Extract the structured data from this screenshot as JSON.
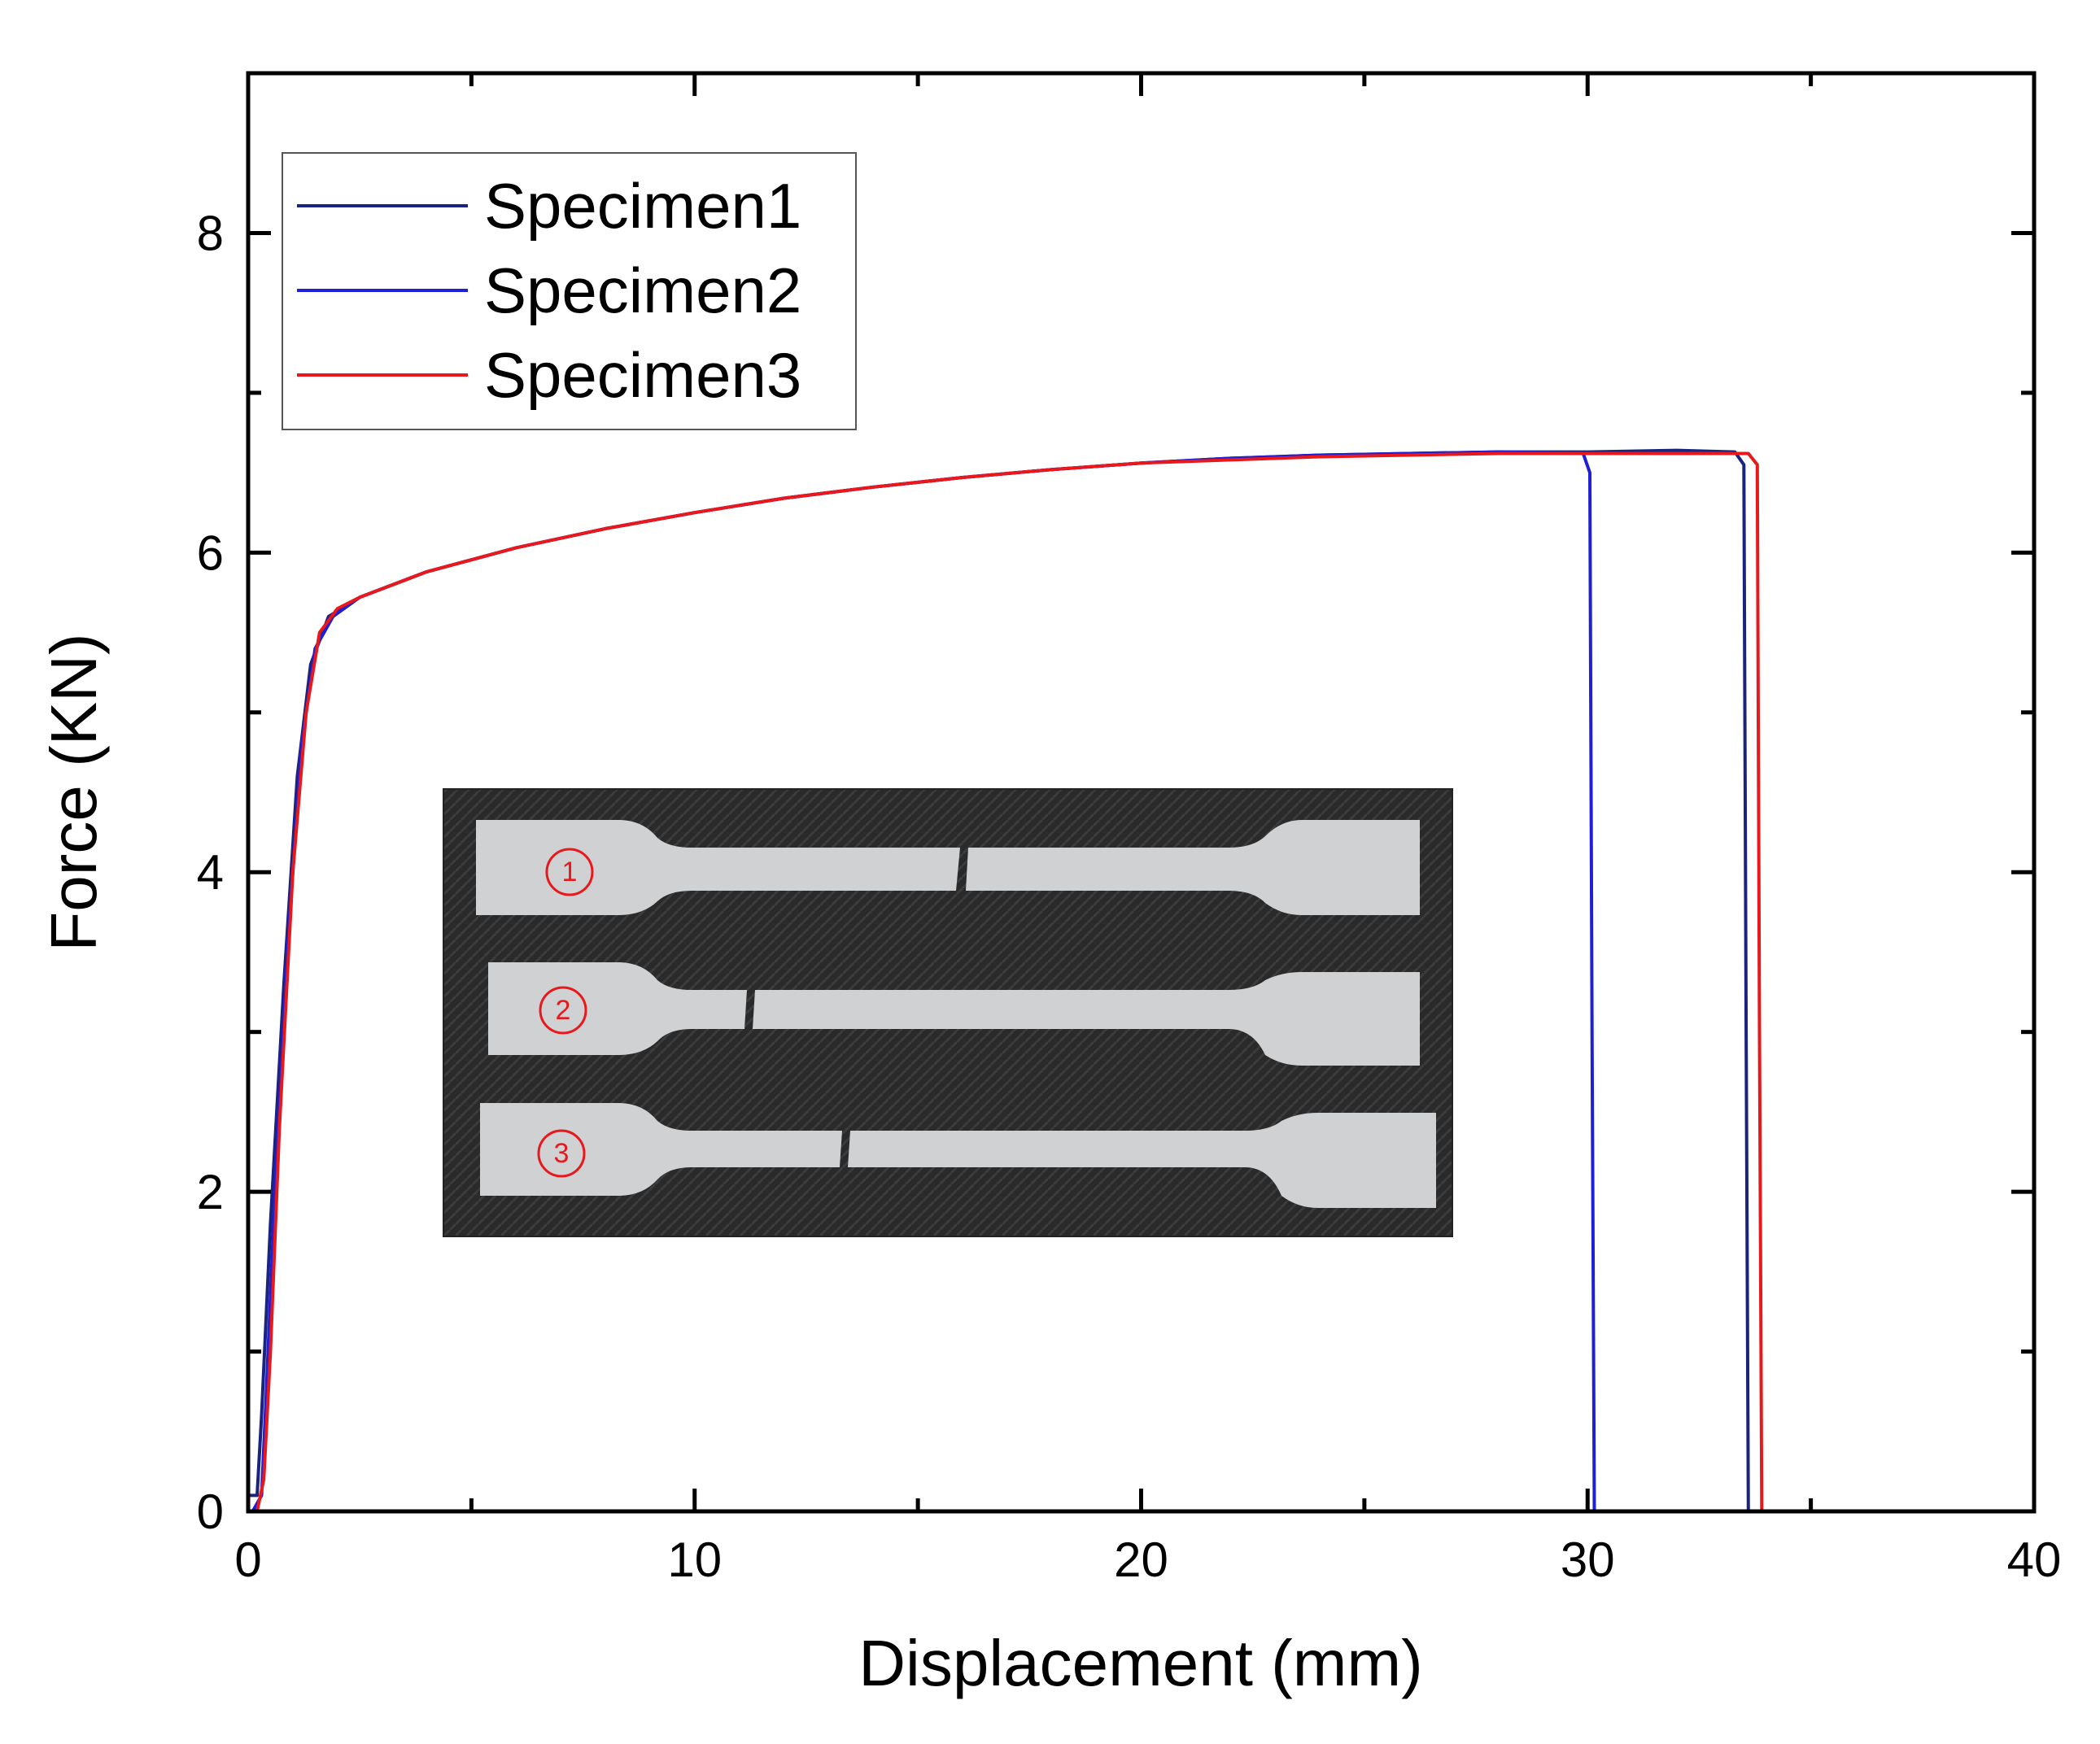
{
  "chart_data": {
    "type": "line",
    "xlabel": "Displacement (mm)",
    "ylabel": "Force (KN)",
    "xlim": [
      0,
      40
    ],
    "ylim": [
      0,
      9
    ],
    "xticks": [
      0,
      10,
      20,
      30,
      40
    ],
    "yticks": [
      0,
      2,
      4,
      6,
      8
    ],
    "x_tick_labels": [
      "0",
      "10",
      "20",
      "30",
      "40"
    ],
    "y_tick_labels": [
      "0",
      "2",
      "4",
      "6",
      "8"
    ],
    "grid": false,
    "legend_position": "top-left",
    "legend": [
      "Specimen1",
      "Specimen2",
      "Specimen3"
    ],
    "series": [
      {
        "name": "Specimen1",
        "color": "#1a237e",
        "points": [
          [
            0.0,
            0.1
          ],
          [
            0.2,
            0.1
          ],
          [
            0.3,
            0.6
          ],
          [
            0.5,
            1.8
          ],
          [
            0.8,
            3.3
          ],
          [
            1.1,
            4.6
          ],
          [
            1.4,
            5.3
          ],
          [
            1.8,
            5.6
          ],
          [
            2.5,
            5.72
          ],
          [
            4,
            5.88
          ],
          [
            6,
            6.03
          ],
          [
            8,
            6.15
          ],
          [
            10,
            6.25
          ],
          [
            12,
            6.34
          ],
          [
            14,
            6.41
          ],
          [
            16,
            6.47
          ],
          [
            18,
            6.52
          ],
          [
            20,
            6.56
          ],
          [
            22,
            6.59
          ],
          [
            24,
            6.61
          ],
          [
            26,
            6.62
          ],
          [
            28,
            6.63
          ],
          [
            30,
            6.63
          ],
          [
            32,
            6.64
          ],
          [
            33.3,
            6.63
          ],
          [
            33.5,
            6.55
          ],
          [
            33.55,
            3.0
          ],
          [
            33.6,
            0.0
          ]
        ]
      },
      {
        "name": "Specimen2",
        "color": "#1f1fd6",
        "points": [
          [
            0.1,
            0.0
          ],
          [
            0.3,
            0.1
          ],
          [
            0.4,
            0.7
          ],
          [
            0.6,
            2.0
          ],
          [
            0.9,
            3.6
          ],
          [
            1.2,
            4.8
          ],
          [
            1.5,
            5.4
          ],
          [
            1.9,
            5.6
          ],
          [
            2.5,
            5.72
          ],
          [
            4,
            5.88
          ],
          [
            6,
            6.03
          ],
          [
            8,
            6.15
          ],
          [
            10,
            6.25
          ],
          [
            12,
            6.34
          ],
          [
            14,
            6.41
          ],
          [
            16,
            6.47
          ],
          [
            18,
            6.52
          ],
          [
            20,
            6.56
          ],
          [
            22,
            6.59
          ],
          [
            24,
            6.61
          ],
          [
            26,
            6.62
          ],
          [
            28,
            6.63
          ],
          [
            29.9,
            6.62
          ],
          [
            30.05,
            6.5
          ],
          [
            30.1,
            3.0
          ],
          [
            30.15,
            0.0
          ]
        ]
      },
      {
        "name": "Specimen3",
        "color": "#e8191c",
        "points": [
          [
            0.2,
            0.0
          ],
          [
            0.35,
            0.2
          ],
          [
            0.5,
            1.0
          ],
          [
            0.7,
            2.4
          ],
          [
            1.0,
            4.0
          ],
          [
            1.3,
            5.0
          ],
          [
            1.6,
            5.5
          ],
          [
            2.0,
            5.65
          ],
          [
            2.5,
            5.72
          ],
          [
            4,
            5.88
          ],
          [
            6,
            6.03
          ],
          [
            8,
            6.15
          ],
          [
            10,
            6.25
          ],
          [
            12,
            6.34
          ],
          [
            14,
            6.41
          ],
          [
            16,
            6.47
          ],
          [
            18,
            6.52
          ],
          [
            20,
            6.56
          ],
          [
            22,
            6.58
          ],
          [
            24,
            6.6
          ],
          [
            26,
            6.61
          ],
          [
            28,
            6.62
          ],
          [
            30,
            6.62
          ],
          [
            32,
            6.62
          ],
          [
            33.6,
            6.62
          ],
          [
            33.8,
            6.55
          ],
          [
            33.85,
            3.0
          ],
          [
            33.9,
            0.0
          ]
        ]
      }
    ],
    "inset": {
      "type": "photo",
      "specimen_labels": [
        "1",
        "2",
        "3"
      ]
    }
  }
}
